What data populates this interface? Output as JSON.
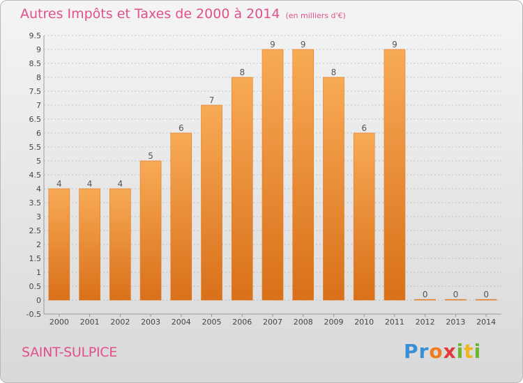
{
  "title": "Autres Impôts et Taxes de 2000 à 2014",
  "unit_note": "(en milliers d'€)",
  "commune": "SAINT-SULPICE",
  "logo": {
    "letters": [
      "P",
      "r",
      "o",
      "x",
      "i",
      "t",
      "i"
    ],
    "colors": [
      "#3a8fd8",
      "#3a8fd8",
      "#f07c1e",
      "#e23a3a",
      "#6ab82e",
      "#f0b41e",
      "#6ab82e"
    ]
  },
  "colors": {
    "bar": "#f08a2e",
    "bar_light": "#f8aa55",
    "bar_dark": "#d9701a",
    "title": "#e0508c",
    "grid": "#999999"
  },
  "chart_data": {
    "type": "bar",
    "categories": [
      "2000",
      "2001",
      "2002",
      "2003",
      "2004",
      "2005",
      "2006",
      "2007",
      "2008",
      "2009",
      "2010",
      "2011",
      "2012",
      "2013",
      "2014"
    ],
    "values": [
      4,
      4,
      4,
      5,
      6,
      7,
      8,
      9,
      9,
      8,
      6,
      9,
      0,
      0,
      0
    ],
    "data_labels": [
      "4",
      "4",
      "4",
      "5",
      "6",
      "7",
      "8",
      "9",
      "9",
      "8",
      "6",
      "9",
      "0",
      "0",
      "0"
    ],
    "y_ticks": [
      "9.5",
      "9",
      "8.5",
      "8",
      "7.5",
      "7",
      "6.5",
      "6",
      "5.5",
      "5",
      "4.5",
      "4",
      "3.5",
      "3",
      "2.5",
      "2",
      "1.5",
      "1",
      "0.5",
      "0",
      "-0.5"
    ],
    "ylim": [
      -0.5,
      9.5
    ],
    "grid": true
  }
}
